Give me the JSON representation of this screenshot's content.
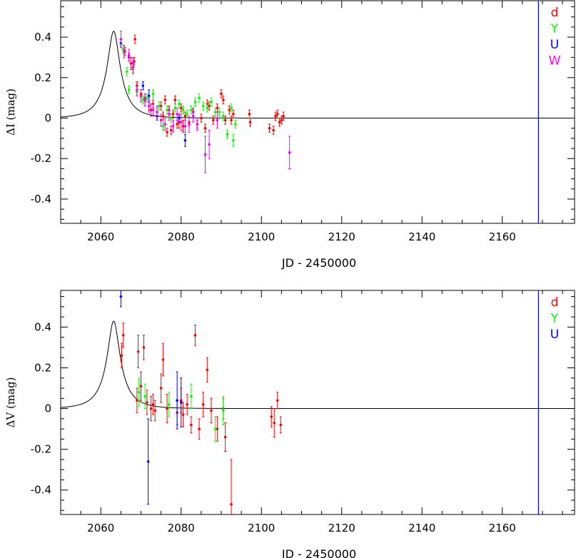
{
  "chart_data": [
    {
      "type": "scatter",
      "id": "top",
      "xlabel": "JD - 2450000",
      "ylabel": "ΔI (mag)",
      "xlim": [
        2050,
        2178
      ],
      "ylim": [
        -0.52,
        0.58
      ],
      "x_ticks": [
        2060,
        2080,
        2100,
        2120,
        2140,
        2160
      ],
      "y_ticks": [
        -0.4,
        -0.2,
        0,
        0.2,
        0.4
      ],
      "y_tick_labels": [
        "-0.4",
        "-0.2",
        "0",
        "0.2",
        "0.4"
      ],
      "grid": false,
      "legend_position": "top-right",
      "vertical_line": {
        "x": 2169,
        "color": "#0000ff"
      },
      "model_curve": {
        "t0": 2063.2,
        "peak": 0.43,
        "tE": 5.5,
        "color": "#000000"
      },
      "series": [
        {
          "name": "d",
          "color": "#ff0000",
          "points": [
            [
              2066.0,
              0.33,
              0.02
            ],
            [
              2067.0,
              0.3,
              0.02
            ],
            [
              2067.5,
              0.27,
              0.03
            ],
            [
              2068.0,
              0.25,
              0.03
            ],
            [
              2068.3,
              0.28,
              0.02
            ],
            [
              2068.5,
              0.39,
              0.02
            ],
            [
              2069.0,
              0.16,
              0.02
            ],
            [
              2070.0,
              0.12,
              0.02
            ],
            [
              2071.0,
              0.1,
              0.02
            ],
            [
              2072.0,
              0.06,
              0.02
            ],
            [
              2072.5,
              0.04,
              0.03
            ],
            [
              2073.0,
              0.07,
              0.02
            ],
            [
              2074.0,
              0.03,
              0.02
            ],
            [
              2075.0,
              0.06,
              0.02
            ],
            [
              2075.5,
              0.01,
              0.02
            ],
            [
              2076.0,
              0.09,
              0.02
            ],
            [
              2076.5,
              -0.07,
              0.02
            ],
            [
              2077.0,
              0.04,
              0.02
            ],
            [
              2077.5,
              -0.06,
              0.02
            ],
            [
              2078.0,
              0.02,
              0.02
            ],
            [
              2078.5,
              0.09,
              0.02
            ],
            [
              2079.0,
              -0.03,
              0.02
            ],
            [
              2079.5,
              -0.02,
              0.03
            ],
            [
              2080.0,
              0.05,
              0.02
            ],
            [
              2080.5,
              -0.04,
              0.03
            ],
            [
              2081.0,
              0.01,
              0.02
            ],
            [
              2082.0,
              -0.02,
              0.02
            ],
            [
              2083.0,
              0.03,
              0.02
            ],
            [
              2084.0,
              -0.03,
              0.02
            ],
            [
              2085.0,
              0.0,
              0.02
            ],
            [
              2086.0,
              -0.05,
              0.02
            ],
            [
              2086.5,
              0.07,
              0.02
            ],
            [
              2087.0,
              0.06,
              0.02
            ],
            [
              2088.0,
              -0.01,
              0.02
            ],
            [
              2089.0,
              0.05,
              0.02
            ],
            [
              2090.0,
              0.12,
              0.02
            ],
            [
              2090.5,
              0.09,
              0.02
            ],
            [
              2091.0,
              -0.01,
              0.02
            ],
            [
              2092.0,
              0.04,
              0.02
            ],
            [
              2092.5,
              -0.01,
              0.02
            ],
            [
              2093.0,
              0.02,
              0.02
            ],
            [
              2097.0,
              0.02,
              0.02
            ],
            [
              2097.2,
              -0.02,
              0.02
            ],
            [
              2102.0,
              -0.05,
              0.02
            ],
            [
              2103.0,
              -0.06,
              0.02
            ],
            [
              2103.5,
              0.01,
              0.02
            ],
            [
              2104.0,
              0.02,
              0.02
            ],
            [
              2104.5,
              -0.02,
              0.02
            ],
            [
              2105.0,
              -0.01,
              0.02
            ],
            [
              2105.5,
              0.01,
              0.02
            ]
          ]
        },
        {
          "name": "Y",
          "color": "#00ff00",
          "points": [
            [
              2065.5,
              0.34,
              0.02
            ],
            [
              2066.5,
              0.23,
              0.02
            ],
            [
              2067.0,
              0.14,
              0.02
            ],
            [
              2069.0,
              0.13,
              0.02
            ],
            [
              2070.5,
              0.09,
              0.02
            ],
            [
              2071.5,
              0.1,
              0.02
            ],
            [
              2073.0,
              0.12,
              0.02
            ],
            [
              2074.5,
              0.06,
              0.02
            ],
            [
              2075.5,
              -0.04,
              0.02
            ],
            [
              2076.5,
              0.04,
              0.02
            ],
            [
              2077.5,
              0.0,
              0.02
            ],
            [
              2078.5,
              0.05,
              0.02
            ],
            [
              2079.5,
              0.07,
              0.02
            ],
            [
              2080.5,
              0.04,
              0.02
            ],
            [
              2081.5,
              0.02,
              0.02
            ],
            [
              2082.5,
              0.04,
              0.02
            ],
            [
              2083.5,
              0.08,
              0.02
            ],
            [
              2084.5,
              0.1,
              0.02
            ],
            [
              2085.5,
              0.06,
              0.02
            ],
            [
              2086.5,
              0.05,
              0.02
            ],
            [
              2087.5,
              0.08,
              0.02
            ],
            [
              2088.5,
              0.03,
              0.02
            ],
            [
              2089.5,
              0.03,
              0.02
            ],
            [
              2090.5,
              0.01,
              0.02
            ],
            [
              2091.5,
              -0.08,
              0.02
            ],
            [
              2092.5,
              0.05,
              0.02
            ],
            [
              2093.0,
              -0.11,
              0.03
            ],
            [
              2093.5,
              -0.03,
              0.02
            ]
          ]
        },
        {
          "name": "U",
          "color": "#0000ff",
          "points": [
            [
              2065.0,
              0.37,
              0.02
            ],
            [
              2070.5,
              0.16,
              0.02
            ],
            [
              2071.0,
              0.09,
              0.03
            ],
            [
              2072.0,
              0.11,
              0.03
            ],
            [
              2074.0,
              0.01,
              0.02
            ],
            [
              2079.5,
              0.0,
              0.02
            ],
            [
              2081.0,
              -0.11,
              0.03
            ]
          ]
        },
        {
          "name": "W",
          "color": "#ff00ff",
          "points": [
            [
              2065.0,
              0.39,
              0.04
            ],
            [
              2065.8,
              0.33,
              0.03
            ],
            [
              2067.0,
              0.31,
              0.03
            ],
            [
              2068.0,
              0.27,
              0.03
            ],
            [
              2069.0,
              0.14,
              0.03
            ],
            [
              2070.0,
              0.11,
              0.03
            ],
            [
              2071.0,
              0.09,
              0.03
            ],
            [
              2072.0,
              0.06,
              0.03
            ],
            [
              2073.0,
              0.04,
              0.03
            ],
            [
              2074.0,
              0.03,
              0.03
            ],
            [
              2075.0,
              -0.01,
              0.03
            ],
            [
              2076.0,
              -0.03,
              0.03
            ],
            [
              2077.0,
              0.02,
              0.03
            ],
            [
              2078.0,
              -0.04,
              0.03
            ],
            [
              2079.0,
              0.02,
              0.03
            ],
            [
              2080.0,
              -0.02,
              0.04
            ],
            [
              2081.0,
              -0.04,
              0.03
            ],
            [
              2082.0,
              -0.03,
              0.04
            ],
            [
              2083.0,
              0.01,
              0.03
            ],
            [
              2084.0,
              -0.03,
              0.03
            ],
            [
              2086.0,
              -0.18,
              0.09
            ],
            [
              2087.0,
              -0.13,
              0.07
            ],
            [
              2089.0,
              -0.01,
              0.04
            ],
            [
              2107.0,
              -0.17,
              0.08
            ]
          ]
        }
      ]
    },
    {
      "type": "scatter",
      "id": "bottom",
      "xlabel": "JD - 2450000",
      "ylabel": "ΔV (mag)",
      "xlim": [
        2050,
        2178
      ],
      "ylim": [
        -0.52,
        0.58
      ],
      "x_ticks": [
        2060,
        2080,
        2100,
        2120,
        2140,
        2160
      ],
      "y_ticks": [
        -0.4,
        -0.2,
        0,
        0.2,
        0.4
      ],
      "y_tick_labels": [
        "-0.4",
        "-0.2",
        "0",
        "0.2",
        "0.4"
      ],
      "grid": false,
      "legend_position": "top-right",
      "vertical_line": {
        "x": 2169,
        "color": "#0000ff"
      },
      "model_curve": {
        "t0": 2063.2,
        "peak": 0.43,
        "tE": 5.5,
        "color": "#000000"
      },
      "series": [
        {
          "name": "d",
          "color": "#ff0000",
          "points": [
            [
              2065.2,
              0.26,
              0.06
            ],
            [
              2065.6,
              0.36,
              0.06
            ],
            [
              2069.0,
              0.04,
              0.06
            ],
            [
              2069.3,
              0.28,
              0.08
            ],
            [
              2070.0,
              0.11,
              0.07
            ],
            [
              2070.7,
              0.3,
              0.06
            ],
            [
              2071.5,
              0.03,
              0.06
            ],
            [
              2072.5,
              0.0,
              0.06
            ],
            [
              2073.0,
              0.02,
              0.05
            ],
            [
              2073.5,
              -0.01,
              0.05
            ],
            [
              2075.0,
              0.1,
              0.07
            ],
            [
              2075.5,
              0.24,
              0.08
            ],
            [
              2076.5,
              0.0,
              0.07
            ],
            [
              2079.0,
              -0.02,
              0.06
            ],
            [
              2080.0,
              0.04,
              0.06
            ],
            [
              2080.5,
              -0.03,
              0.06
            ],
            [
              2081.5,
              0.02,
              0.05
            ],
            [
              2082.5,
              -0.08,
              0.04
            ],
            [
              2083.5,
              0.36,
              0.05
            ],
            [
              2084.5,
              -0.1,
              0.05
            ],
            [
              2085.5,
              0.02,
              0.06
            ],
            [
              2086.5,
              0.19,
              0.06
            ],
            [
              2087.5,
              -0.01,
              0.06
            ],
            [
              2089.0,
              -0.1,
              0.06
            ],
            [
              2090.5,
              0.0,
              0.05
            ],
            [
              2091.0,
              -0.14,
              0.07
            ],
            [
              2092.5,
              -0.47,
              0.22
            ],
            [
              2102.5,
              -0.04,
              0.05
            ],
            [
              2103.2,
              -0.07,
              0.07
            ],
            [
              2104.0,
              0.04,
              0.04
            ],
            [
              2104.8,
              -0.08,
              0.04
            ]
          ]
        },
        {
          "name": "Y",
          "color": "#00ff00",
          "points": [
            [
              2069.5,
              0.08,
              0.07
            ],
            [
              2071.0,
              0.06,
              0.06
            ],
            [
              2077.0,
              0.02,
              0.06
            ],
            [
              2082.5,
              0.06,
              0.06
            ],
            [
              2088.5,
              -0.1,
              0.06
            ],
            [
              2090.5,
              -0.01,
              0.07
            ]
          ]
        },
        {
          "name": "U",
          "color": "#0000ff",
          "points": [
            [
              2065.0,
              0.55,
              0.05
            ],
            [
              2071.8,
              -0.26,
              0.21
            ],
            [
              2079.0,
              0.04,
              0.14
            ],
            [
              2080.0,
              0.03,
              0.12
            ]
          ]
        }
      ]
    }
  ]
}
